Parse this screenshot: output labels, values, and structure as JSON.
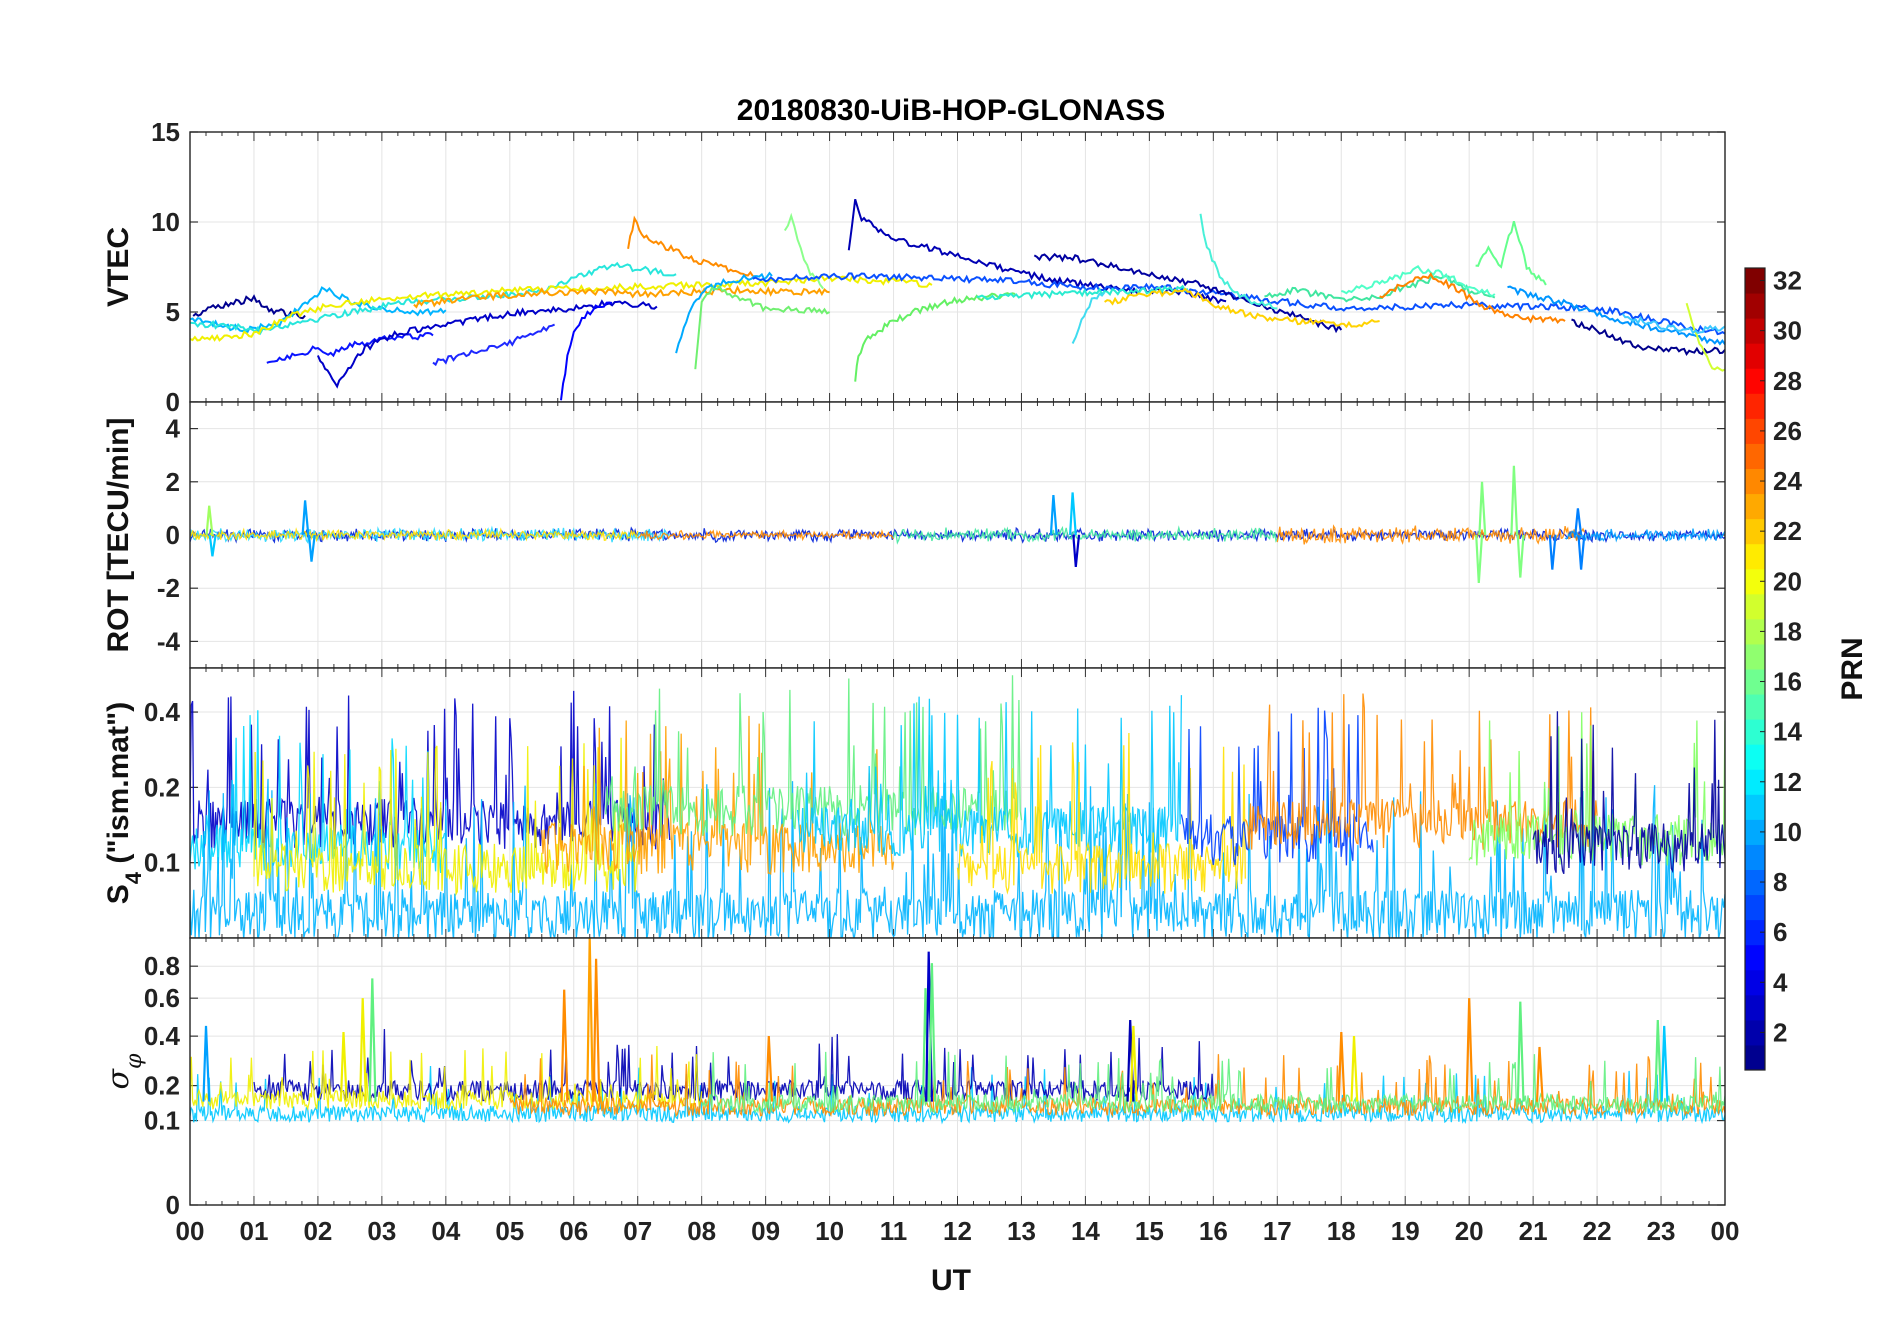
{
  "figure": {
    "title": "20180830-UiB-HOP-GLONASS",
    "xlabel": "UT",
    "x_ticks": [
      "00",
      "01",
      "02",
      "03",
      "04",
      "05",
      "06",
      "07",
      "08",
      "09",
      "10",
      "11",
      "12",
      "13",
      "14",
      "15",
      "16",
      "17",
      "18",
      "19",
      "20",
      "21",
      "22",
      "23",
      "00"
    ],
    "colorbar": {
      "label": "PRN",
      "range": [
        1,
        32
      ],
      "ticks": [
        "2",
        "4",
        "6",
        "8",
        "10",
        "12",
        "14",
        "16",
        "18",
        "20",
        "22",
        "24",
        "26",
        "28",
        "30",
        "32"
      ],
      "colormap": "jet",
      "colors": [
        "#00008f",
        "#0000ff",
        "#0080ff",
        "#00ffff",
        "#80ff80",
        "#ffff00",
        "#ff8000",
        "#ff0000",
        "#800000"
      ]
    }
  },
  "chart_data": [
    {
      "type": "line",
      "panel": "VTEC",
      "ylabel": "VTEC",
      "ylim": [
        0,
        15
      ],
      "yticks": [
        "0",
        "5",
        "10",
        "15"
      ],
      "xlim": [
        0,
        24
      ],
      "grid": true,
      "series": [
        {
          "color": "#000090",
          "x": [
            0.05,
            0.4,
            0.8,
            1.0,
            1.2,
            1.5,
            1.8
          ],
          "y": [
            4.8,
            5.3,
            5.6,
            5.8,
            5.2,
            4.9,
            4.8
          ]
        },
        {
          "color": "#0a14ff",
          "x": [
            1.2,
            1.6,
            2.0,
            2.2,
            2.5,
            3.0,
            3.8
          ],
          "y": [
            2.2,
            2.6,
            3.0,
            2.6,
            3.1,
            3.5,
            3.7
          ]
        },
        {
          "color": "#0000c8",
          "x": [
            2.0,
            2.15,
            2.3,
            2.4,
            2.7,
            3.2,
            3.8,
            4.5,
            5.2,
            5.8,
            6.2,
            6.6,
            7.0,
            7.3
          ],
          "y": [
            2.6,
            1.6,
            0.9,
            1.4,
            2.9,
            3.8,
            4.2,
            4.6,
            5.0,
            5.1,
            5.3,
            5.5,
            5.4,
            5.3
          ]
        },
        {
          "color": "#1e28ff",
          "x": [
            3.8,
            4.2,
            4.6,
            5.0,
            5.4,
            5.7
          ],
          "y": [
            2.2,
            2.5,
            2.9,
            3.3,
            3.8,
            4.3
          ]
        },
        {
          "color": "#0000ff",
          "x": [
            5.8,
            5.9,
            6.0,
            6.3,
            6.6
          ],
          "y": [
            0.1,
            2.5,
            4.0,
            5.2,
            5.5
          ]
        },
        {
          "color": "#00b4ff",
          "x": [
            0.0,
            0.4,
            0.9,
            1.4,
            1.8,
            2.1,
            2.5,
            3.0,
            3.6,
            4.0
          ],
          "y": [
            4.6,
            4.3,
            4.0,
            4.4,
            5.5,
            6.3,
            5.6,
            5.2,
            5.0,
            5.1
          ]
        },
        {
          "color": "#28e6dc",
          "x": [
            0.0,
            0.6,
            1.1,
            1.8,
            2.5,
            3.5,
            4.5,
            5.5,
            6.0,
            6.6,
            7.2,
            7.6
          ],
          "y": [
            4.4,
            4.2,
            4.0,
            4.5,
            5.0,
            5.6,
            5.8,
            6.2,
            6.9,
            7.6,
            7.3,
            7.1
          ]
        },
        {
          "color": "#f0f000",
          "x": [
            0.0,
            0.5,
            1.0,
            1.6,
            2.2,
            3.0,
            4.0,
            5.0,
            6.0,
            7.0,
            8.0,
            9.0,
            10.0,
            11.0,
            11.6
          ],
          "y": [
            3.5,
            3.6,
            3.8,
            4.8,
            5.4,
            5.7,
            6.0,
            6.2,
            6.3,
            6.4,
            6.5,
            6.6,
            6.9,
            6.7,
            6.5
          ]
        },
        {
          "color": "#ffa000",
          "x": [
            3.5,
            4.5,
            5.5,
            6.3,
            7.0,
            7.8,
            8.6,
            9.4,
            10.0
          ],
          "y": [
            5.4,
            5.8,
            6.1,
            6.1,
            6.0,
            6.1,
            6.2,
            6.1,
            6.1
          ]
        },
        {
          "color": "#ff8c00",
          "x": [
            6.85,
            6.95,
            7.1,
            7.4,
            7.8,
            8.3,
            8.8
          ],
          "y": [
            8.5,
            10.2,
            9.2,
            8.7,
            8.0,
            7.5,
            7.0
          ]
        },
        {
          "color": "#00aaff",
          "x": [
            7.6,
            7.8,
            8.0,
            8.3,
            8.7,
            9.1
          ],
          "y": [
            2.7,
            5.0,
            6.1,
            6.6,
            6.9,
            7.0
          ]
        },
        {
          "color": "#70f070",
          "x": [
            7.9,
            8.0,
            8.2,
            8.6,
            9.0,
            9.4,
            10.0
          ],
          "y": [
            1.8,
            5.5,
            6.4,
            5.8,
            5.2,
            5.1,
            5.0
          ]
        },
        {
          "color": "#8cff8c",
          "x": [
            9.3,
            9.4,
            9.5,
            9.6,
            9.7,
            9.8,
            9.9
          ],
          "y": [
            9.5,
            10.2,
            9.0,
            8.0,
            7.2,
            6.8,
            6.3
          ]
        },
        {
          "color": "#0000b4",
          "x": [
            10.3,
            10.4,
            10.5,
            10.8,
            11.2,
            11.8,
            12.5,
            13.2,
            14.0,
            14.8,
            15.5,
            16.2
          ],
          "y": [
            8.4,
            11.4,
            10.2,
            9.5,
            8.9,
            8.3,
            7.6,
            7.0,
            6.5,
            6.2,
            6.1,
            5.6
          ]
        },
        {
          "color": "#64f064",
          "x": [
            10.4,
            10.45,
            10.6,
            10.9,
            11.3,
            11.8,
            12.3,
            12.9
          ],
          "y": [
            1.1,
            2.6,
            3.5,
            4.3,
            5.0,
            5.5,
            5.8,
            6.0
          ]
        },
        {
          "color": "#0a50ff",
          "x": [
            8.8,
            9.6,
            10.5,
            11.4,
            12.3,
            13.0,
            13.8,
            14.5,
            15.2,
            16.0,
            17.0,
            18.0,
            19.0,
            20.0,
            21.0,
            22.0,
            23.0,
            23.5,
            24.0
          ],
          "y": [
            6.8,
            6.9,
            7.0,
            6.9,
            6.8,
            6.7,
            6.4,
            6.3,
            6.4,
            6.0,
            5.6,
            5.2,
            5.3,
            5.4,
            5.3,
            5.2,
            4.5,
            4.1,
            3.8
          ]
        },
        {
          "color": "#2aebd0",
          "x": [
            12.3,
            13.0,
            13.6,
            14.3,
            15.0,
            15.6
          ],
          "y": [
            5.8,
            5.9,
            6.0,
            6.1,
            6.2,
            6.3
          ]
        },
        {
          "color": "#0000a0",
          "x": [
            13.2,
            13.8,
            14.4,
            15.0,
            15.8,
            16.4,
            17.0,
            17.6,
            18.0
          ],
          "y": [
            8.1,
            8.0,
            7.6,
            7.1,
            6.5,
            5.8,
            5.1,
            4.4,
            4.0
          ]
        },
        {
          "color": "#40dcf0",
          "x": [
            13.8,
            13.9,
            14.1,
            14.3
          ],
          "y": [
            3.2,
            4.2,
            5.6,
            6.1
          ]
        },
        {
          "color": "#48f0d8",
          "x": [
            15.8,
            15.9,
            16.1,
            16.3,
            16.6,
            17.0
          ],
          "y": [
            10.4,
            8.6,
            7.0,
            6.2,
            5.6,
            5.2
          ]
        },
        {
          "color": "#ffd200",
          "x": [
            14.3,
            15.0,
            15.6,
            16.0,
            16.5,
            17.0,
            17.6,
            18.2,
            18.6
          ],
          "y": [
            5.5,
            6.0,
            6.2,
            5.4,
            4.9,
            4.6,
            4.4,
            4.3,
            4.5
          ]
        },
        {
          "color": "#40e6a0",
          "x": [
            16.8,
            17.2,
            17.6,
            18.0,
            18.6,
            19.0,
            19.6,
            20.0,
            20.4
          ],
          "y": [
            5.8,
            6.2,
            6.0,
            5.7,
            5.9,
            6.4,
            7.0,
            6.2,
            5.8
          ]
        },
        {
          "color": "#50ffc8",
          "x": [
            18.0,
            18.6,
            19.2,
            19.6,
            20.0,
            20.4
          ],
          "y": [
            6.1,
            6.6,
            7.4,
            7.1,
            6.4,
            6.0
          ]
        },
        {
          "color": "#ff8200",
          "x": [
            18.6,
            19.0,
            19.4,
            19.8,
            20.2,
            20.6,
            21.0,
            21.5
          ],
          "y": [
            5.8,
            6.6,
            7.0,
            6.3,
            5.3,
            4.9,
            4.6,
            4.5
          ]
        },
        {
          "color": "#64ff8c",
          "x": [
            20.1,
            20.3,
            20.5,
            20.7,
            20.9,
            21.2
          ],
          "y": [
            7.5,
            8.5,
            7.6,
            10.1,
            7.5,
            6.5
          ]
        },
        {
          "color": "#0096ff",
          "x": [
            20.6,
            21.0,
            21.6,
            22.2,
            22.8,
            23.4,
            24.0
          ],
          "y": [
            6.3,
            5.9,
            5.4,
            4.7,
            4.2,
            3.8,
            3.2
          ]
        },
        {
          "color": "#00008c",
          "x": [
            21.6,
            22.0,
            22.6,
            23.0,
            23.6,
            24.0
          ],
          "y": [
            4.5,
            4.0,
            3.1,
            2.9,
            2.8,
            2.9
          ]
        },
        {
          "color": "#d2ff32",
          "x": [
            23.4,
            23.6,
            23.8,
            24.0
          ],
          "y": [
            5.4,
            3.3,
            1.9,
            1.8
          ]
        },
        {
          "color": "#3cc8ff",
          "x": [
            22.4,
            23.0,
            23.5,
            24.0
          ],
          "y": [
            4.8,
            4.2,
            3.9,
            4.2
          ]
        }
      ]
    },
    {
      "type": "line",
      "panel": "ROT",
      "ylabel": "ROT [TECU/min]",
      "ylim": [
        -5,
        5
      ],
      "yticks": [
        "-4",
        "-2",
        "0",
        "2",
        "4"
      ],
      "xlim": [
        0,
        24
      ],
      "grid": true,
      "noise_bands": [
        {
          "x_start": 0.0,
          "x_end": 24.0,
          "amplitude": 0.18,
          "color": "#0020d8"
        },
        {
          "x_start": 0.0,
          "x_end": 7.5,
          "amplitude": 0.2,
          "color": "#28d8ff"
        },
        {
          "x_start": 0.0,
          "x_end": 7.0,
          "amplitude": 0.15,
          "color": "#ffe000"
        },
        {
          "x_start": 7.0,
          "x_end": 11.0,
          "amplitude": 0.12,
          "color": "#ff8c00"
        },
        {
          "x_start": 11.0,
          "x_end": 17.0,
          "amplitude": 0.2,
          "color": "#40e8a0"
        },
        {
          "x_start": 17.0,
          "x_end": 21.8,
          "amplitude": 0.25,
          "color": "#ff8c00"
        },
        {
          "x_start": 21.5,
          "x_end": 24.0,
          "amplitude": 0.18,
          "color": "#00a0ff"
        }
      ],
      "spikes": [
        {
          "x": 0.3,
          "y": 1.1,
          "color": "#a0ff60"
        },
        {
          "x": 0.35,
          "y": -0.8,
          "color": "#00c8ff"
        },
        {
          "x": 1.8,
          "y": 1.3,
          "color": "#00a0ff"
        },
        {
          "x": 1.9,
          "y": -1.0,
          "color": "#00a0ff"
        },
        {
          "x": 13.5,
          "y": 1.5,
          "color": "#00a0ff"
        },
        {
          "x": 13.8,
          "y": 1.6,
          "color": "#00c8ff"
        },
        {
          "x": 13.85,
          "y": -1.2,
          "color": "#0000c8"
        },
        {
          "x": 20.2,
          "y": 2.0,
          "color": "#80ff80"
        },
        {
          "x": 20.15,
          "y": -1.8,
          "color": "#80ff80"
        },
        {
          "x": 20.7,
          "y": 2.6,
          "color": "#80ff80"
        },
        {
          "x": 20.8,
          "y": -1.6,
          "color": "#80ff80"
        },
        {
          "x": 21.3,
          "y": -1.3,
          "color": "#0080ff"
        },
        {
          "x": 21.7,
          "y": 1.0,
          "color": "#0080ff"
        },
        {
          "x": 21.75,
          "y": -1.3,
          "color": "#0080ff"
        }
      ]
    },
    {
      "type": "line",
      "panel": "S4",
      "ylabel": "S",
      "ylabel_subscript": "4",
      "ylabel_suffix": " (\"ism.mat\")",
      "scale": "log",
      "ylim": [
        0.05,
        0.6
      ],
      "yticks": [
        "0.1",
        "0.2",
        "0.4"
      ],
      "xlim": [
        0,
        24
      ],
      "grid": true,
      "noise_bands": [
        {
          "x_start": 0.0,
          "x_end": 7.5,
          "base": 0.15,
          "color": "#0000c8"
        },
        {
          "x_start": 0.0,
          "x_end": 4.0,
          "base": 0.12,
          "color": "#00d8ff"
        },
        {
          "x_start": 0.0,
          "x_end": 24.0,
          "base": 0.065,
          "color": "#00b4ff"
        },
        {
          "x_start": 1.0,
          "x_end": 7.0,
          "base": 0.1,
          "color": "#f0f000"
        },
        {
          "x_start": 5.5,
          "x_end": 11.0,
          "base": 0.12,
          "color": "#ffa000"
        },
        {
          "x_start": 6.5,
          "x_end": 13.0,
          "base": 0.17,
          "color": "#60f080"
        },
        {
          "x_start": 9.5,
          "x_end": 15.5,
          "base": 0.14,
          "color": "#00c8ff"
        },
        {
          "x_start": 12.0,
          "x_end": 16.5,
          "base": 0.1,
          "color": "#ffe000"
        },
        {
          "x_start": 15.5,
          "x_end": 18.5,
          "base": 0.13,
          "color": "#0040ff"
        },
        {
          "x_start": 16.5,
          "x_end": 22.0,
          "base": 0.15,
          "color": "#ff8c00"
        },
        {
          "x_start": 20.0,
          "x_end": 24.0,
          "base": 0.13,
          "color": "#80ff60"
        },
        {
          "x_start": 21.0,
          "x_end": 24.0,
          "base": 0.12,
          "color": "#0000a0"
        }
      ]
    },
    {
      "type": "line",
      "panel": "sigma_phi",
      "ylabel": "σ",
      "ylabel_subscript": "φ",
      "scale": "sqrt",
      "ylim": [
        0,
        1
      ],
      "yticks": [
        "0",
        "0.1",
        "0.2",
        "0.4",
        "0.6",
        "0.8"
      ],
      "xlim": [
        0,
        24
      ],
      "grid": true,
      "noise_bands": [
        {
          "x_start": 0.0,
          "x_end": 24.0,
          "base": 0.12,
          "color": "#00c8ff"
        },
        {
          "x_start": 1.0,
          "x_end": 16.0,
          "base": 0.19,
          "color": "#0000b4"
        },
        {
          "x_start": 0.0,
          "x_end": 8.0,
          "base": 0.16,
          "color": "#f0f000"
        },
        {
          "x_start": 5.0,
          "x_end": 24.0,
          "base": 0.14,
          "color": "#ff8c00"
        },
        {
          "x_start": 8.0,
          "x_end": 24.0,
          "base": 0.15,
          "color": "#60f080"
        }
      ],
      "spikes": [
        {
          "x": 0.25,
          "y": 0.45,
          "color": "#00a0ff"
        },
        {
          "x": 2.4,
          "y": 0.42,
          "color": "#f0f000"
        },
        {
          "x": 2.7,
          "y": 0.6,
          "color": "#f0f000"
        },
        {
          "x": 2.85,
          "y": 0.72,
          "color": "#60f080"
        },
        {
          "x": 5.85,
          "y": 0.65,
          "color": "#ff8c00"
        },
        {
          "x": 6.25,
          "y": 1.0,
          "color": "#ffa000"
        },
        {
          "x": 6.35,
          "y": 0.85,
          "color": "#ff8c00"
        },
        {
          "x": 9.05,
          "y": 0.4,
          "color": "#ff8c00"
        },
        {
          "x": 11.5,
          "y": 0.66,
          "color": "#60f080"
        },
        {
          "x": 11.55,
          "y": 0.9,
          "color": "#0000c8"
        },
        {
          "x": 11.6,
          "y": 0.82,
          "color": "#60f080"
        },
        {
          "x": 14.7,
          "y": 0.48,
          "color": "#0000b4"
        },
        {
          "x": 14.75,
          "y": 0.45,
          "color": "#f0f000"
        },
        {
          "x": 18.0,
          "y": 0.42,
          "color": "#ff8c00"
        },
        {
          "x": 18.2,
          "y": 0.4,
          "color": "#f0f000"
        },
        {
          "x": 20.0,
          "y": 0.6,
          "color": "#ff8c00"
        },
        {
          "x": 20.8,
          "y": 0.58,
          "color": "#60f080"
        },
        {
          "x": 21.1,
          "y": 0.35,
          "color": "#ff8c00"
        },
        {
          "x": 22.95,
          "y": 0.48,
          "color": "#60f080"
        },
        {
          "x": 23.05,
          "y": 0.45,
          "color": "#00c8ff"
        }
      ]
    }
  ]
}
